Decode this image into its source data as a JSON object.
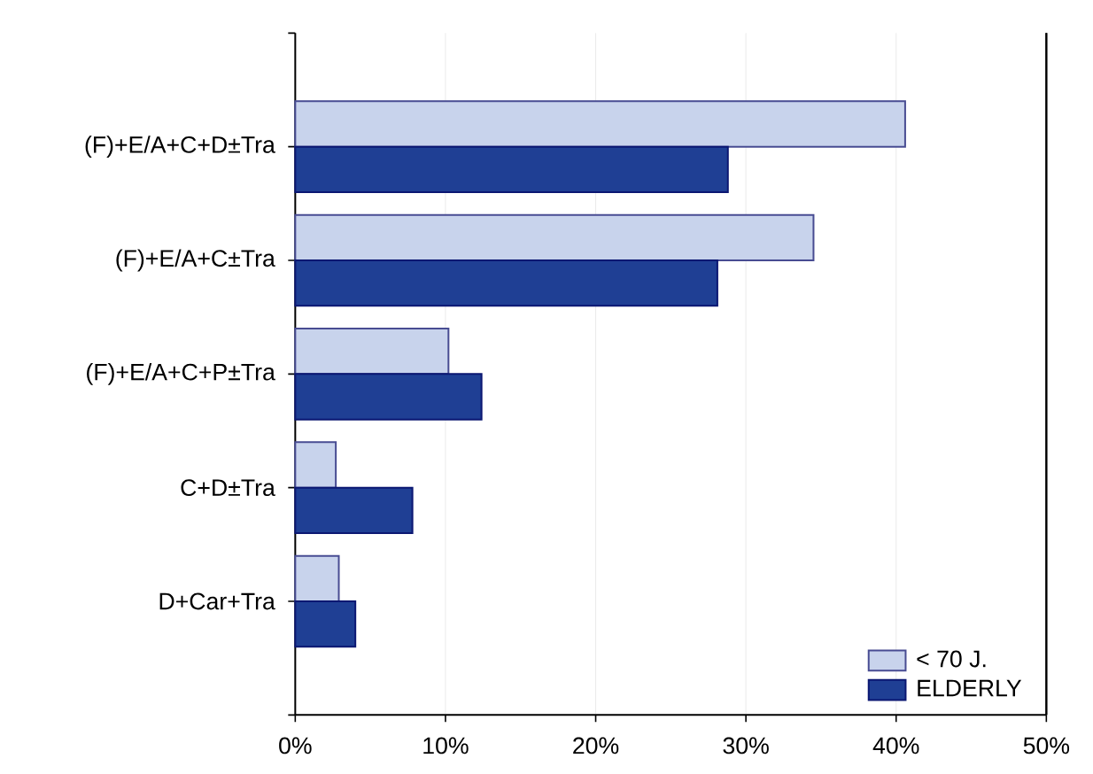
{
  "chart_data": {
    "type": "bar",
    "orientation": "horizontal",
    "categories": [
      "(F)+E/A+C+D±Tra",
      "(F)+E/A+C±Tra",
      "(F)+E/A+C+P±Tra",
      "C+D±Tra",
      "D+Car+Tra"
    ],
    "series": [
      {
        "name": "< 70 J.",
        "color": "#c8d3ec",
        "values": [
          40.6,
          34.5,
          10.2,
          2.7,
          2.9
        ]
      },
      {
        "name": "ELDERLY",
        "color": "#1f3f94",
        "values": [
          28.8,
          28.1,
          12.4,
          7.8,
          4.0
        ]
      }
    ],
    "xlim": [
      0,
      50
    ],
    "xticks": [
      {
        "value": 0,
        "label": "0%"
      },
      {
        "value": 10,
        "label": "10%"
      },
      {
        "value": 20,
        "label": "20%"
      },
      {
        "value": 30,
        "label": "30%"
      },
      {
        "value": 40,
        "label": "40%"
      },
      {
        "value": 50,
        "label": "50%"
      }
    ],
    "grid": "x",
    "legend": "bottom right"
  }
}
